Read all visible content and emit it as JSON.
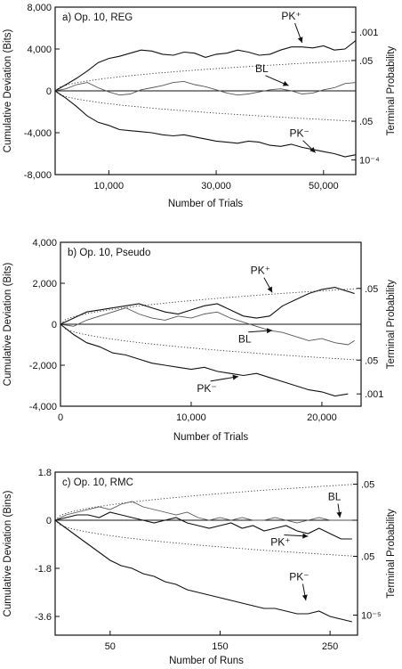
{
  "chart_data": [
    {
      "type": "line",
      "title": "a) Op. 10, REG",
      "xlabel": "Number of Trials",
      "ylabel": "Cumulative Deviation (Bits)",
      "right_label": "Terminal Probability",
      "xlim": [
        0,
        56000
      ],
      "ylim": [
        -8000,
        8000
      ],
      "x_ticks": [
        10000,
        30000,
        50000
      ],
      "x_tick_labels": [
        "10,000",
        "30,000",
        "50,000"
      ],
      "y_ticks": [
        8000,
        4000,
        0,
        -4000,
        -8000
      ],
      "y_tick_labels": [
        "8,000",
        "4,000",
        "0",
        "-4,000",
        "-8,000"
      ],
      "right_labels": [
        {
          "text": ".001",
          "y": 5600
        },
        {
          "text": ".05",
          "y": 2900
        },
        {
          "text": ".05",
          "y": -2900
        },
        {
          "text": "10⁻⁴",
          "y": -6600
        }
      ],
      "envelope": {
        "x_end": 56000,
        "y_end": 2900
      },
      "annotations": [
        {
          "text": "PK⁺",
          "x": 44000,
          "y": 6800,
          "arrow_to": [
            46000,
            4600
          ]
        },
        {
          "text": "BL",
          "x": 38500,
          "y": 1800,
          "arrow_to": [
            43500,
            500
          ]
        },
        {
          "text": "PK⁻",
          "x": 45500,
          "y": -4400,
          "arrow_to": [
            48500,
            -5900
          ]
        }
      ],
      "series": [
        {
          "name": "PK⁺",
          "style": "main",
          "x": [
            0,
            2000,
            4000,
            6000,
            8000,
            10000,
            12000,
            14000,
            16000,
            18000,
            20000,
            22000,
            24000,
            26000,
            28000,
            30000,
            32000,
            34000,
            36000,
            38000,
            40000,
            42000,
            44000,
            46000,
            48000,
            50000,
            52000,
            54000,
            56000
          ],
          "y": [
            0,
            600,
            1200,
            1900,
            2700,
            3100,
            3300,
            3600,
            3900,
            3800,
            3500,
            3400,
            3700,
            3600,
            3200,
            3500,
            3600,
            3900,
            3700,
            3400,
            3500,
            3900,
            4200,
            4200,
            4100,
            4300,
            3900,
            4000,
            4800
          ]
        },
        {
          "name": "BL",
          "style": "bl",
          "x": [
            0,
            2000,
            4000,
            6000,
            8000,
            10000,
            12000,
            14000,
            16000,
            18000,
            20000,
            22000,
            24000,
            26000,
            28000,
            30000,
            32000,
            34000,
            36000,
            38000,
            40000,
            42000,
            44000,
            46000,
            48000,
            50000,
            52000,
            54000,
            56000
          ],
          "y": [
            0,
            200,
            600,
            800,
            300,
            -100,
            -400,
            -300,
            100,
            300,
            500,
            800,
            900,
            600,
            400,
            100,
            -200,
            -400,
            -300,
            -100,
            100,
            200,
            0,
            -300,
            -200,
            100,
            300,
            700,
            800
          ]
        },
        {
          "name": "PK⁻",
          "style": "main",
          "x": [
            0,
            2000,
            4000,
            6000,
            8000,
            10000,
            12000,
            14000,
            16000,
            18000,
            20000,
            22000,
            24000,
            26000,
            28000,
            30000,
            32000,
            34000,
            36000,
            38000,
            40000,
            42000,
            44000,
            46000,
            48000,
            50000,
            52000,
            54000,
            56000
          ],
          "y": [
            0,
            -700,
            -1500,
            -2400,
            -3000,
            -3300,
            -3700,
            -3800,
            -3900,
            -4000,
            -4200,
            -4300,
            -4200,
            -4400,
            -4600,
            -4800,
            -4900,
            -5000,
            -4800,
            -4900,
            -5200,
            -5300,
            -5100,
            -5400,
            -5600,
            -5800,
            -6000,
            -6300,
            -6100
          ]
        }
      ]
    },
    {
      "type": "line",
      "title": "b) Op. 10, Pseudo",
      "xlabel": "Number of Trials",
      "ylabel": "Cumulative Deviation (Bits)",
      "right_label": "Terminal Probability",
      "xlim": [
        0,
        23000
      ],
      "ylim": [
        -4000,
        4000
      ],
      "x_ticks": [
        0,
        10000,
        20000
      ],
      "x_tick_labels": [
        "0",
        "10,000",
        "20,000"
      ],
      "y_ticks": [
        4000,
        2000,
        0,
        -2000,
        -4000
      ],
      "y_tick_labels": [
        "4,000",
        "2,000",
        "0",
        "-2,000",
        "-4,000"
      ],
      "right_labels": [
        {
          "text": ".05",
          "y": 1750
        },
        {
          "text": ".05",
          "y": -1750
        },
        {
          "text": ".001",
          "y": -3400
        }
      ],
      "envelope": {
        "x_end": 23000,
        "y_end": 1750
      },
      "annotations": [
        {
          "text": "PK⁺",
          "x": 15300,
          "y": 2450,
          "arrow_to": [
            16200,
            1550
          ]
        },
        {
          "text": "BL",
          "x": 14100,
          "y": -900,
          "arrow_to": [
            16200,
            -300
          ]
        },
        {
          "text": "PK⁻",
          "x": 11200,
          "y": -3300,
          "arrow_to": [
            13600,
            -2550
          ]
        }
      ],
      "series": [
        {
          "name": "PK⁺",
          "style": "main",
          "x": [
            0,
            1000,
            2000,
            3000,
            4000,
            5000,
            6000,
            7000,
            8000,
            9000,
            10000,
            11000,
            12000,
            13000,
            14000,
            15000,
            16000,
            17000,
            18000,
            19000,
            20000,
            21000,
            22000,
            22500
          ],
          "y": [
            0,
            300,
            600,
            700,
            800,
            900,
            1000,
            800,
            600,
            500,
            700,
            900,
            1000,
            700,
            400,
            300,
            400,
            900,
            1200,
            1500,
            1700,
            1800,
            1600,
            1500
          ]
        },
        {
          "name": "BL",
          "style": "bl",
          "x": [
            0,
            1000,
            2000,
            3000,
            4000,
            5000,
            6000,
            7000,
            8000,
            9000,
            10000,
            11000,
            12000,
            13000,
            14000,
            15000,
            16000,
            17000,
            18000,
            19000,
            20000,
            21000,
            22000,
            22500
          ],
          "y": [
            0,
            -100,
            200,
            400,
            600,
            800,
            500,
            300,
            200,
            400,
            300,
            500,
            600,
            300,
            100,
            -100,
            -300,
            -400,
            -600,
            -800,
            -700,
            -900,
            -1000,
            -800
          ]
        },
        {
          "name": "PK⁻",
          "style": "main",
          "x": [
            0,
            1000,
            2000,
            3000,
            4000,
            5000,
            6000,
            7000,
            8000,
            9000,
            10000,
            11000,
            12000,
            13000,
            14000,
            15000,
            16000,
            17000,
            18000,
            19000,
            20000,
            21000,
            22000
          ],
          "y": [
            0,
            -500,
            -900,
            -1100,
            -1400,
            -1500,
            -1700,
            -1900,
            -2000,
            -2100,
            -2200,
            -2100,
            -2300,
            -2400,
            -2500,
            -2400,
            -2600,
            -2800,
            -3000,
            -3200,
            -3300,
            -3500,
            -3400
          ]
        }
      ]
    },
    {
      "type": "line",
      "title": "c) Op. 10, RMC",
      "xlabel": "Number of Runs",
      "ylabel": "Cumulative Deviation (Bins)",
      "right_label": "Terminal Probability",
      "xlim": [
        0,
        275
      ],
      "ylim": [
        -4.3,
        1.8
      ],
      "x_ticks": [
        50,
        150,
        250
      ],
      "x_tick_labels": [
        "50",
        "150",
        "250"
      ],
      "y_ticks": [
        1.8,
        0,
        -1.8,
        -3.6
      ],
      "y_tick_labels": [
        "1.8",
        "0",
        "-1.8",
        "-3.6"
      ],
      "right_labels": [
        {
          "text": ".05",
          "y": 1.35
        },
        {
          "text": ".05",
          "y": -1.35
        },
        {
          "text": "10⁻⁵",
          "y": -3.55
        }
      ],
      "envelope": {
        "x_end": 275,
        "y_end": 1.35
      },
      "annotations": [
        {
          "text": "BL",
          "x": 254,
          "y": 0.75,
          "arrow_to": [
            259,
            0.1
          ]
        },
        {
          "text": "PK⁺",
          "x": 205,
          "y": -0.95,
          "arrow_to": [
            230,
            -0.6
          ]
        },
        {
          "text": "PK⁻",
          "x": 222,
          "y": -2.25,
          "arrow_to": [
            228,
            -3.0
          ]
        }
      ],
      "series": [
        {
          "name": "PK⁺",
          "style": "main",
          "x": [
            0,
            10,
            20,
            30,
            40,
            50,
            60,
            70,
            80,
            90,
            100,
            110,
            120,
            130,
            140,
            150,
            160,
            170,
            180,
            190,
            200,
            210,
            220,
            230,
            240,
            250,
            260,
            270
          ],
          "y": [
            0,
            0.1,
            0.2,
            0.2,
            0.1,
            0.3,
            0.2,
            0.1,
            0.0,
            -0.1,
            0.0,
            0.1,
            -0.1,
            -0.2,
            -0.3,
            -0.2,
            -0.1,
            -0.3,
            -0.2,
            -0.4,
            -0.3,
            -0.2,
            -0.4,
            -0.5,
            -0.3,
            -0.5,
            -0.7,
            -0.7
          ]
        },
        {
          "name": "BL",
          "style": "bl",
          "x": [
            0,
            10,
            20,
            30,
            40,
            50,
            60,
            70,
            80,
            90,
            100,
            110,
            120,
            130,
            140,
            150,
            160,
            170,
            180,
            190,
            200,
            210,
            220,
            230,
            240,
            250,
            260,
            270
          ],
          "y": [
            0,
            0.2,
            0.3,
            0.4,
            0.5,
            0.4,
            0.6,
            0.7,
            0.5,
            0.4,
            0.3,
            0.2,
            0.3,
            0.1,
            0.0,
            0.1,
            0.0,
            0.1,
            0.0,
            0.0,
            0.1,
            0.0,
            -0.1,
            0.0,
            0.1,
            0.0,
            0.0,
            0.0
          ]
        },
        {
          "name": "PK⁻",
          "style": "main",
          "x": [
            0,
            10,
            20,
            30,
            40,
            50,
            60,
            70,
            80,
            90,
            100,
            110,
            120,
            130,
            140,
            150,
            160,
            170,
            180,
            190,
            200,
            210,
            220,
            230,
            240,
            250,
            260,
            270
          ],
          "y": [
            0,
            -0.3,
            -0.6,
            -0.9,
            -1.2,
            -1.5,
            -1.7,
            -1.8,
            -2.0,
            -2.1,
            -2.3,
            -2.4,
            -2.6,
            -2.7,
            -2.8,
            -2.9,
            -3.0,
            -3.1,
            -3.2,
            -3.3,
            -3.3,
            -3.4,
            -3.5,
            -3.5,
            -3.4,
            -3.6,
            -3.7,
            -3.8
          ]
        }
      ]
    }
  ]
}
